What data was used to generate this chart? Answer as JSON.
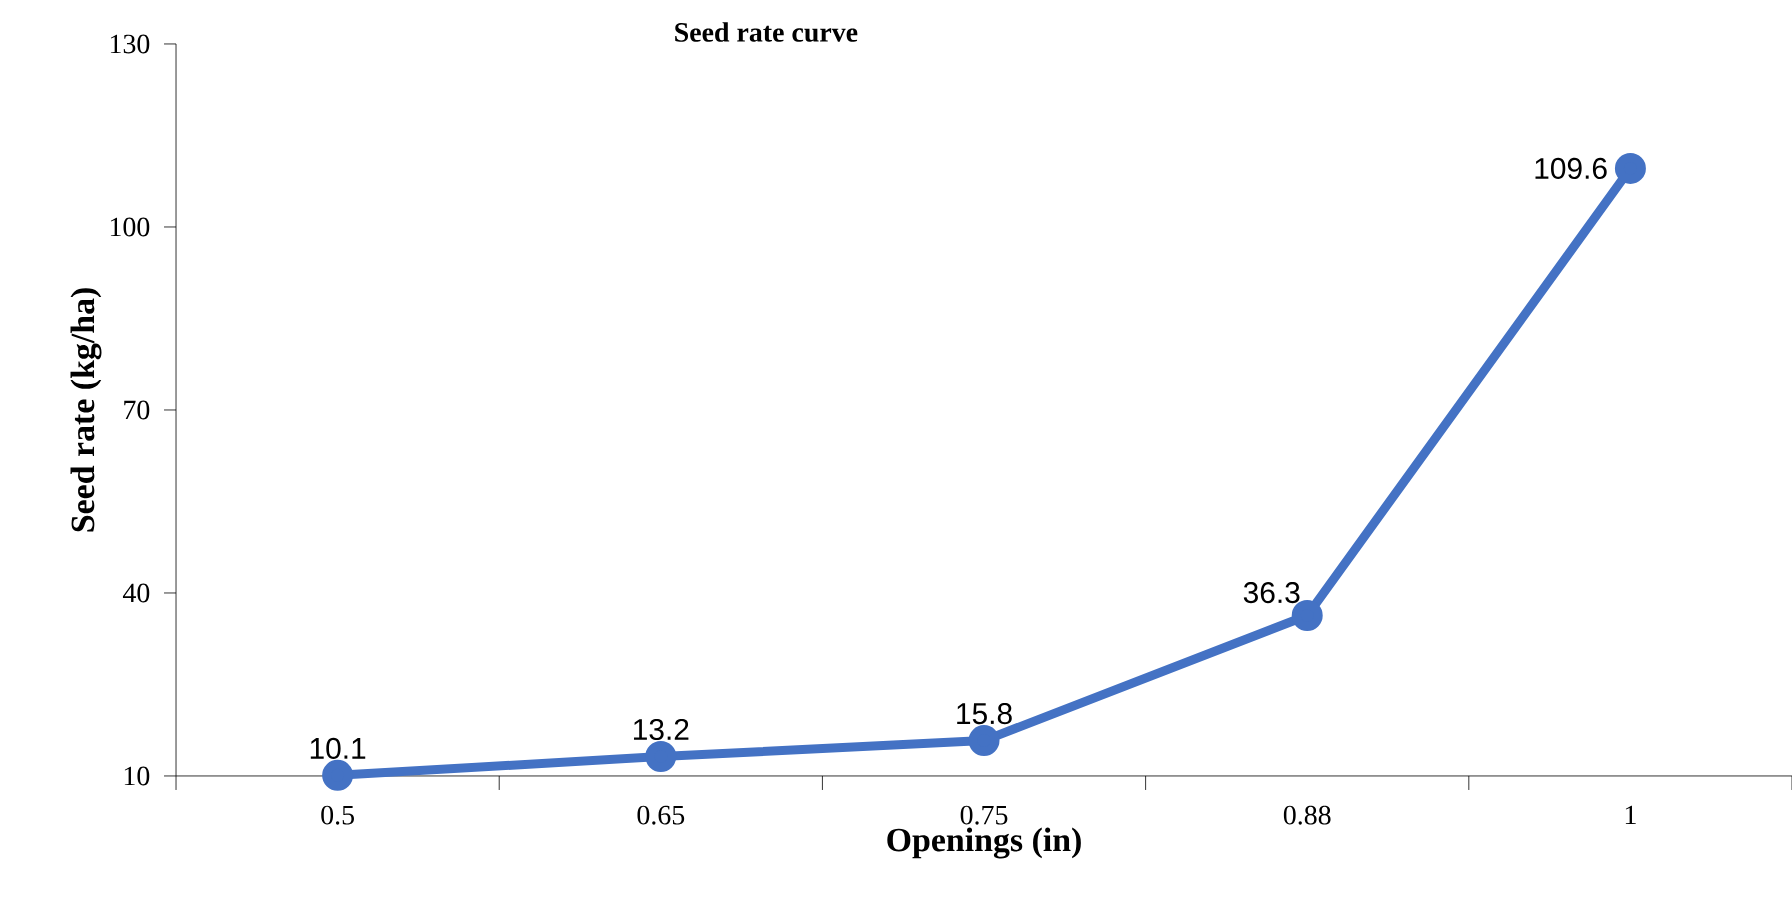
{
  "chart_data": {
    "type": "line",
    "title": "Seed rate curve",
    "xlabel": "Openings (in)",
    "ylabel": "Seed rate (kg/ha)",
    "categories": [
      "0.5",
      "0.65",
      "0.75",
      "0.88",
      "1"
    ],
    "series": [
      {
        "color": "#4472c4",
        "values": [
          10.1,
          13.2,
          15.8,
          36.3,
          109.6
        ]
      }
    ],
    "ylim": [
      10,
      130
    ],
    "yticks": [
      10,
      40,
      70,
      100,
      130
    ],
    "data_labels": true,
    "marker": "circle",
    "line_style": "solid",
    "grid": false
  }
}
